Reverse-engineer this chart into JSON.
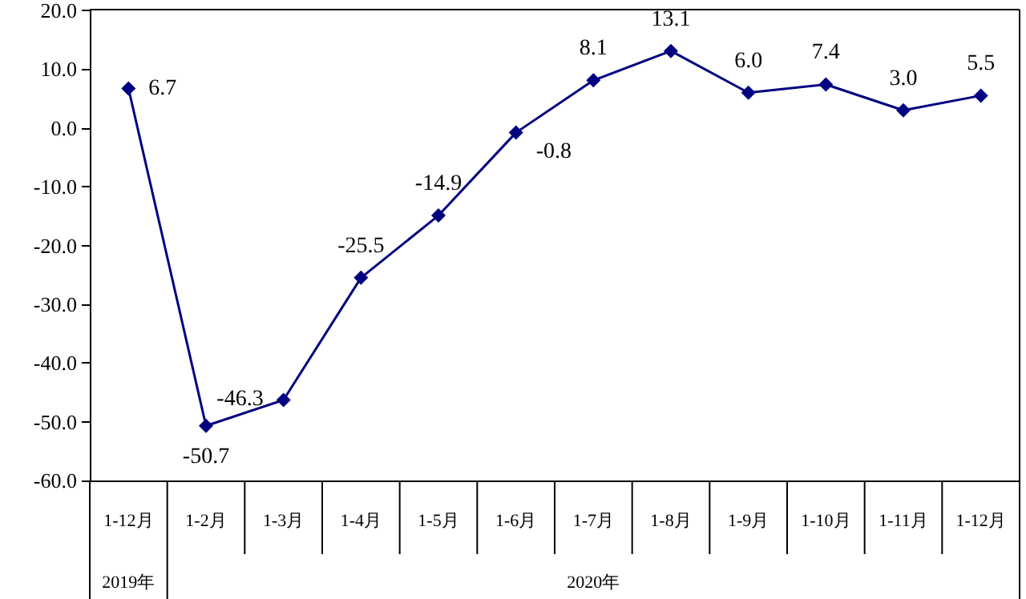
{
  "chart_data": {
    "type": "line",
    "categories": [
      "1-12月",
      "1-2月",
      "1-3月",
      "1-4月",
      "1-5月",
      "1-6月",
      "1-7月",
      "1-8月",
      "1-9月",
      "1-10月",
      "1-11月",
      "1-12月"
    ],
    "series": [
      {
        "color": "#000080",
        "values": [
          6.7,
          -50.7,
          -46.3,
          -25.5,
          -14.9,
          -0.8,
          8.1,
          13.1,
          6.0,
          7.4,
          3.0,
          5.5
        ],
        "value_labels": [
          "6.7",
          "-50.7",
          "-46.3",
          "-25.5",
          "-14.9",
          "-0.8",
          "8.1",
          "13.1",
          "6.0",
          "7.4",
          "3.0",
          "5.5"
        ]
      }
    ],
    "ylim": [
      -60,
      20
    ],
    "yticks": [
      {
        "value": -60,
        "label": "-60.0"
      },
      {
        "value": -50,
        "label": "-50.0"
      },
      {
        "value": -40,
        "label": "-40.0"
      },
      {
        "value": -30,
        "label": "-30.0"
      },
      {
        "value": -20,
        "label": "-20.0"
      },
      {
        "value": -10,
        "label": "-10.0"
      },
      {
        "value": 0,
        "label": "0.0"
      },
      {
        "value": 10,
        "label": "10.0"
      },
      {
        "value": 20,
        "label": "20.0"
      }
    ],
    "annotations": [
      "2019年",
      "2020年"
    ],
    "marker": "diamond",
    "line_style": "solid",
    "grid": false
  }
}
